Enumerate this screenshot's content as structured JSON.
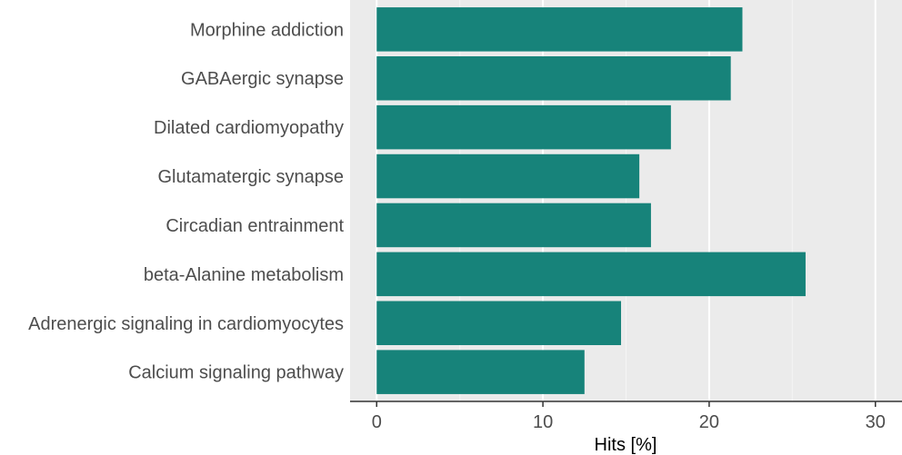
{
  "chart_data": {
    "type": "bar",
    "orientation": "horizontal",
    "categories": [
      "Morphine addiction",
      "GABAergic synapse",
      "Dilated cardiomyopathy",
      "Glutamatergic synapse",
      "Circadian entrainment",
      "beta-Alanine metabolism",
      "Adrenergic signaling in cardiomyocytes",
      "Calcium signaling pathway"
    ],
    "values": [
      22.0,
      21.3,
      17.7,
      15.8,
      16.5,
      25.8,
      14.7,
      12.5
    ],
    "xlabel": "Hits [%]",
    "ylabel": "",
    "xlim": [
      -1.6,
      31.6
    ],
    "xticks": [
      0,
      10,
      20,
      30
    ],
    "grid": true,
    "colors": {
      "bar": "#17837a",
      "panel": "#ebebeb",
      "grid_major": "#ffffff",
      "grid_minor": "#f5f5f5",
      "axis": "#333333"
    }
  }
}
